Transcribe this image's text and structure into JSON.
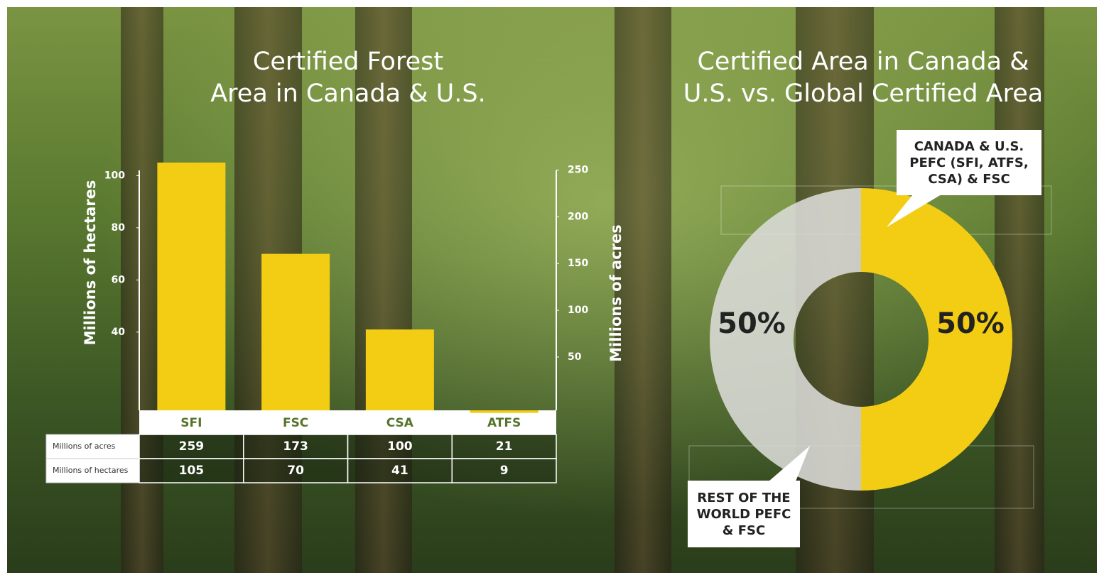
{
  "chart_data": [
    {
      "type": "bar",
      "title": [
        "Certified Forest",
        "Area in Canada & U.S."
      ],
      "ylabel": "Millions of hectares",
      "y2label": "Millions of acres",
      "categories": [
        "SFI",
        "FSC",
        "CSA",
        "ATFS"
      ],
      "series": [
        {
          "name": "Millions of acres",
          "axis": "y2",
          "values": [
            259,
            173,
            100,
            21
          ]
        },
        {
          "name": "Millions of hectares",
          "color": "#f2cd14",
          "values": [
            105,
            70,
            41,
            9
          ]
        }
      ],
      "ylim": [
        10,
        105
      ],
      "yticks": [
        40,
        60,
        80,
        100
      ],
      "y2lim": [
        -7,
        258
      ],
      "y2ticks": [
        50,
        100,
        150,
        200,
        250
      ]
    },
    {
      "type": "pie",
      "title": [
        "Certified Area in Canada &",
        "U.S. vs. Global Certified Area"
      ],
      "categories": [
        "CANADA & U.S. PEFC (SFI, ATFS, CSA) & FSC",
        "REST OF THE WORLD PEFC & FSC"
      ],
      "values": [
        50,
        50
      ],
      "value_labels": [
        "50%",
        "50%"
      ],
      "colors": [
        "#f2cd14",
        "#dcdcd8"
      ],
      "donut": true
    }
  ]
}
